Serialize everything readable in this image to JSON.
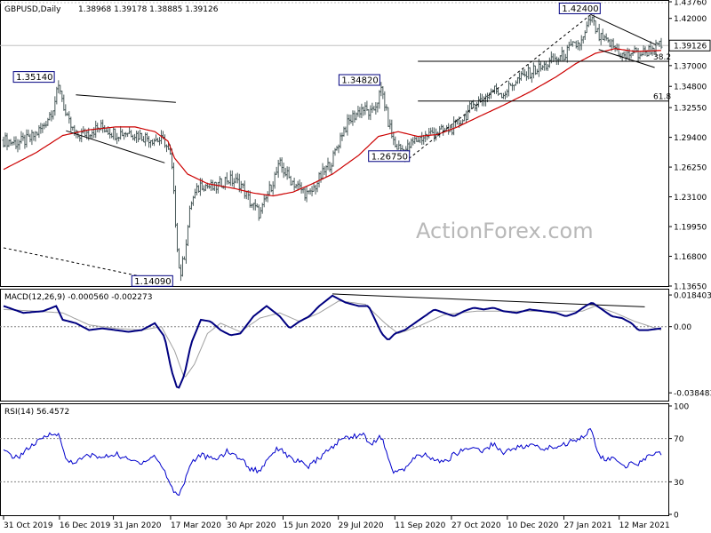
{
  "header": {
    "symbol": "GBPUSD,Daily",
    "ohlc": "1.38968 1.39178 1.38885 1.39126"
  },
  "watermark": "ActionForex.com",
  "chart_data": [
    {
      "type": "candlestick",
      "panel": "price",
      "ylim": [
        1.1365,
        1.4376
      ],
      "y_ticks": [
        "1.43760",
        "1.42000",
        "1.39126",
        "1.37000",
        "1.34800",
        "1.32550",
        "1.29400",
        "1.26250",
        "1.23100",
        "1.19950",
        "1.16800",
        "1.13650"
      ],
      "last_price": "1.39126",
      "colors": {
        "bars": "#4a5a5a",
        "ma": "#cc0000",
        "lines": "#000000"
      },
      "close_path": [
        [
          0,
          1.291
        ],
        [
          0.02,
          1.288
        ],
        [
          0.04,
          1.292
        ],
        [
          0.06,
          1.305
        ],
        [
          0.075,
          1.325
        ],
        [
          0.085,
          1.35
        ],
        [
          0.095,
          1.315
        ],
        [
          0.11,
          1.295
        ],
        [
          0.13,
          1.3
        ],
        [
          0.15,
          1.305
        ],
        [
          0.17,
          1.298
        ],
        [
          0.19,
          1.3
        ],
        [
          0.21,
          1.295
        ],
        [
          0.23,
          1.292
        ],
        [
          0.245,
          1.29
        ],
        [
          0.255,
          1.27
        ],
        [
          0.262,
          1.2
        ],
        [
          0.268,
          1.145
        ],
        [
          0.275,
          1.17
        ],
        [
          0.285,
          1.225
        ],
        [
          0.3,
          1.245
        ],
        [
          0.32,
          1.24
        ],
        [
          0.34,
          1.25
        ],
        [
          0.36,
          1.245
        ],
        [
          0.375,
          1.225
        ],
        [
          0.39,
          1.212
        ],
        [
          0.405,
          1.24
        ],
        [
          0.42,
          1.265
        ],
        [
          0.435,
          1.25
        ],
        [
          0.45,
          1.24
        ],
        [
          0.465,
          1.232
        ],
        [
          0.48,
          1.25
        ],
        [
          0.5,
          1.27
        ],
        [
          0.515,
          1.3
        ],
        [
          0.53,
          1.315
        ],
        [
          0.545,
          1.325
        ],
        [
          0.56,
          1.318
        ],
        [
          0.575,
          1.345
        ],
        [
          0.585,
          1.31
        ],
        [
          0.595,
          1.285
        ],
        [
          0.61,
          1.28
        ],
        [
          0.625,
          1.29
        ],
        [
          0.64,
          1.295
        ],
        [
          0.655,
          1.3
        ],
        [
          0.67,
          1.3
        ],
        [
          0.685,
          1.305
        ],
        [
          0.7,
          1.315
        ],
        [
          0.715,
          1.33
        ],
        [
          0.73,
          1.335
        ],
        [
          0.745,
          1.345
        ],
        [
          0.76,
          1.34
        ],
        [
          0.775,
          1.352
        ],
        [
          0.79,
          1.358
        ],
        [
          0.805,
          1.365
        ],
        [
          0.82,
          1.368
        ],
        [
          0.835,
          1.375
        ],
        [
          0.85,
          1.38
        ],
        [
          0.865,
          1.39
        ],
        [
          0.88,
          1.395
        ],
        [
          0.893,
          1.421
        ],
        [
          0.905,
          1.4
        ],
        [
          0.915,
          1.395
        ],
        [
          0.925,
          1.392
        ],
        [
          0.935,
          1.385
        ],
        [
          0.945,
          1.378
        ],
        [
          0.955,
          1.385
        ],
        [
          0.965,
          1.382
        ],
        [
          0.975,
          1.384
        ],
        [
          0.985,
          1.388
        ],
        [
          1.0,
          1.391
        ]
      ],
      "ma_path": [
        [
          0,
          1.26
        ],
        [
          0.05,
          1.278
        ],
        [
          0.09,
          1.296
        ],
        [
          0.13,
          1.302
        ],
        [
          0.17,
          1.305
        ],
        [
          0.2,
          1.305
        ],
        [
          0.23,
          1.3
        ],
        [
          0.25,
          1.29
        ],
        [
          0.26,
          1.272
        ],
        [
          0.28,
          1.255
        ],
        [
          0.31,
          1.245
        ],
        [
          0.35,
          1.24
        ],
        [
          0.38,
          1.235
        ],
        [
          0.41,
          1.232
        ],
        [
          0.44,
          1.236
        ],
        [
          0.47,
          1.245
        ],
        [
          0.5,
          1.255
        ],
        [
          0.54,
          1.275
        ],
        [
          0.57,
          1.295
        ],
        [
          0.6,
          1.3
        ],
        [
          0.63,
          1.295
        ],
        [
          0.66,
          1.297
        ],
        [
          0.69,
          1.305
        ],
        [
          0.72,
          1.315
        ],
        [
          0.76,
          1.328
        ],
        [
          0.8,
          1.342
        ],
        [
          0.84,
          1.358
        ],
        [
          0.87,
          1.372
        ],
        [
          0.9,
          1.383
        ],
        [
          0.93,
          1.388
        ],
        [
          0.96,
          1.385
        ],
        [
          1.0,
          1.386
        ]
      ],
      "annotations": [
        {
          "label": "1.42400",
          "value": 1.424
        },
        {
          "label": "1.35140",
          "value": 1.3514
        },
        {
          "label": "1.34820",
          "value": 1.3482
        },
        {
          "label": "1.26750",
          "value": 1.2675
        },
        {
          "label": "1.14090",
          "value": 1.1409
        }
      ],
      "fib_levels": [
        {
          "label": "38.2",
          "value": 1.3745
        },
        {
          "label": "61.8",
          "value": 1.3325
        }
      ],
      "x_ticks": [
        "31 Oct 2019",
        "16 Dec 2019",
        "31 Jan 2020",
        "17 Mar 2020",
        "30 Apr 2020",
        "15 Jun 2020",
        "29 Jul 2020",
        "11 Sep 2020",
        "27 Oct 2020",
        "10 Dec 2020",
        "27 Jan 2021",
        "12 Mar 2021"
      ]
    },
    {
      "type": "line",
      "panel": "macd",
      "label": "MACD(12,26,9) -0.000560 -0.002273",
      "ylim": [
        -0.0425,
        0.0205
      ],
      "y_ticks": [
        "0.018403",
        "0.00",
        "-0.038483"
      ],
      "series": [
        {
          "colors": "#000080",
          "values": [
            [
              0,
              0.012
            ],
            [
              0.03,
              0.008
            ],
            [
              0.06,
              0.009
            ],
            [
              0.08,
              0.012
            ],
            [
              0.09,
              0.004
            ],
            [
              0.11,
              0.002
            ],
            [
              0.13,
              -0.002
            ],
            [
              0.15,
              -0.001
            ],
            [
              0.17,
              -0.002
            ],
            [
              0.19,
              -0.003
            ],
            [
              0.21,
              -0.002
            ],
            [
              0.23,
              0.002
            ],
            [
              0.245,
              -0.006
            ],
            [
              0.255,
              -0.025
            ],
            [
              0.265,
              -0.037
            ],
            [
              0.275,
              -0.028
            ],
            [
              0.285,
              -0.01
            ],
            [
              0.3,
              0.004
            ],
            [
              0.315,
              0.003
            ],
            [
              0.33,
              -0.002
            ],
            [
              0.345,
              -0.005
            ],
            [
              0.36,
              -0.004
            ],
            [
              0.38,
              0.006
            ],
            [
              0.4,
              0.012
            ],
            [
              0.42,
              0.006
            ],
            [
              0.435,
              -0.001
            ],
            [
              0.45,
              0.003
            ],
            [
              0.465,
              0.006
            ],
            [
              0.48,
              0.012
            ],
            [
              0.5,
              0.018
            ],
            [
              0.52,
              0.014
            ],
            [
              0.54,
              0.012
            ],
            [
              0.555,
              0.012
            ],
            [
              0.565,
              0.004
            ],
            [
              0.575,
              -0.004
            ],
            [
              0.585,
              -0.008
            ],
            [
              0.595,
              -0.004
            ],
            [
              0.61,
              -0.002
            ],
            [
              0.625,
              0.002
            ],
            [
              0.64,
              0.006
            ],
            [
              0.655,
              0.01
            ],
            [
              0.67,
              0.008
            ],
            [
              0.685,
              0.006
            ],
            [
              0.7,
              0.009
            ],
            [
              0.715,
              0.011
            ],
            [
              0.73,
              0.01
            ],
            [
              0.745,
              0.011
            ],
            [
              0.76,
              0.009
            ],
            [
              0.78,
              0.008
            ],
            [
              0.8,
              0.01
            ],
            [
              0.82,
              0.009
            ],
            [
              0.84,
              0.008
            ],
            [
              0.855,
              0.006
            ],
            [
              0.87,
              0.008
            ],
            [
              0.885,
              0.012
            ],
            [
              0.895,
              0.014
            ],
            [
              0.91,
              0.01
            ],
            [
              0.925,
              0.006
            ],
            [
              0.94,
              0.005
            ],
            [
              0.955,
              0.002
            ],
            [
              0.965,
              -0.002
            ],
            [
              0.98,
              -0.002
            ],
            [
              1.0,
              -0.001
            ]
          ]
        },
        {
          "colors": "#a0a0a0",
          "values": [
            [
              0,
              0.01
            ],
            [
              0.05,
              0.009
            ],
            [
              0.09,
              0.008
            ],
            [
              0.13,
              0.001
            ],
            [
              0.17,
              -0.001
            ],
            [
              0.21,
              -0.002
            ],
            [
              0.24,
              0.0
            ],
            [
              0.26,
              -0.014
            ],
            [
              0.275,
              -0.03
            ],
            [
              0.29,
              -0.022
            ],
            [
              0.31,
              -0.004
            ],
            [
              0.33,
              0.002
            ],
            [
              0.36,
              -0.003
            ],
            [
              0.39,
              0.005
            ],
            [
              0.42,
              0.008
            ],
            [
              0.45,
              0.003
            ],
            [
              0.48,
              0.008
            ],
            [
              0.51,
              0.015
            ],
            [
              0.55,
              0.013
            ],
            [
              0.58,
              0.002
            ],
            [
              0.6,
              -0.004
            ],
            [
              0.63,
              0.0
            ],
            [
              0.67,
              0.007
            ],
            [
              0.72,
              0.009
            ],
            [
              0.78,
              0.009
            ],
            [
              0.84,
              0.009
            ],
            [
              0.88,
              0.009
            ],
            [
              0.9,
              0.012
            ],
            [
              0.93,
              0.008
            ],
            [
              0.96,
              0.003
            ],
            [
              1.0,
              -0.002
            ]
          ]
        }
      ]
    },
    {
      "type": "line",
      "panel": "rsi",
      "label": "RSI(14) 56.4572",
      "ylim": [
        0,
        100
      ],
      "y_ticks": [
        "100",
        "70",
        "30",
        "0"
      ],
      "reference_levels": [
        70,
        30
      ],
      "series": [
        {
          "colors": "#0000cc",
          "values": [
            [
              0,
              58
            ],
            [
              0.02,
              52
            ],
            [
              0.04,
              62
            ],
            [
              0.06,
              70
            ],
            [
              0.075,
              76
            ],
            [
              0.085,
              72
            ],
            [
              0.095,
              50
            ],
            [
              0.11,
              48
            ],
            [
              0.13,
              55
            ],
            [
              0.15,
              52
            ],
            [
              0.17,
              56
            ],
            [
              0.19,
              50
            ],
            [
              0.21,
              48
            ],
            [
              0.23,
              54
            ],
            [
              0.245,
              40
            ],
            [
              0.255,
              25
            ],
            [
              0.265,
              17
            ],
            [
              0.275,
              30
            ],
            [
              0.285,
              48
            ],
            [
              0.3,
              55
            ],
            [
              0.32,
              50
            ],
            [
              0.34,
              58
            ],
            [
              0.36,
              52
            ],
            [
              0.375,
              42
            ],
            [
              0.39,
              40
            ],
            [
              0.405,
              55
            ],
            [
              0.42,
              62
            ],
            [
              0.435,
              52
            ],
            [
              0.45,
              48
            ],
            [
              0.465,
              44
            ],
            [
              0.48,
              52
            ],
            [
              0.5,
              62
            ],
            [
              0.515,
              70
            ],
            [
              0.53,
              72
            ],
            [
              0.545,
              74
            ],
            [
              0.56,
              65
            ],
            [
              0.575,
              72
            ],
            [
              0.585,
              50
            ],
            [
              0.595,
              38
            ],
            [
              0.61,
              42
            ],
            [
              0.625,
              52
            ],
            [
              0.64,
              55
            ],
            [
              0.655,
              50
            ],
            [
              0.67,
              48
            ],
            [
              0.685,
              55
            ],
            [
              0.7,
              60
            ],
            [
              0.715,
              62
            ],
            [
              0.73,
              58
            ],
            [
              0.745,
              66
            ],
            [
              0.76,
              56
            ],
            [
              0.775,
              62
            ],
            [
              0.79,
              62
            ],
            [
              0.805,
              64
            ],
            [
              0.82,
              60
            ],
            [
              0.835,
              62
            ],
            [
              0.85,
              64
            ],
            [
              0.865,
              68
            ],
            [
              0.88,
              72
            ],
            [
              0.893,
              78
            ],
            [
              0.905,
              55
            ],
            [
              0.915,
              50
            ],
            [
              0.925,
              52
            ],
            [
              0.935,
              48
            ],
            [
              0.945,
              42
            ],
            [
              0.955,
              50
            ],
            [
              0.965,
              46
            ],
            [
              0.975,
              52
            ],
            [
              0.985,
              54
            ],
            [
              1.0,
              56.5
            ]
          ]
        }
      ]
    }
  ]
}
